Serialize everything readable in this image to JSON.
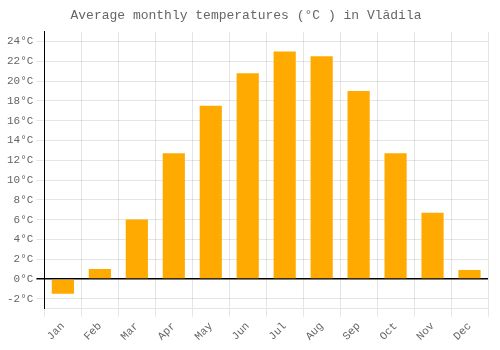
{
  "chart_data": {
    "type": "bar",
    "title": "Average monthly temperatures (°C ) in Vlădila",
    "categories": [
      "Jan",
      "Feb",
      "Mar",
      "Apr",
      "May",
      "Jun",
      "Jul",
      "Aug",
      "Sep",
      "Oct",
      "Nov",
      "Dec"
    ],
    "values": [
      -1.5,
      1.0,
      6.0,
      12.7,
      17.5,
      20.8,
      23.0,
      22.5,
      19.0,
      12.7,
      6.7,
      0.9
    ],
    "color": "#FFAA00",
    "ylim": [
      -3,
      25
    ],
    "yticks": [
      {
        "value": -2,
        "label": "-2°C"
      },
      {
        "value": 0,
        "label": "0°C"
      },
      {
        "value": 2,
        "label": "2°C"
      },
      {
        "value": 4,
        "label": "4°C"
      },
      {
        "value": 6,
        "label": "6°C"
      },
      {
        "value": 8,
        "label": "8°C"
      },
      {
        "value": 10,
        "label": "10°C"
      },
      {
        "value": 12,
        "label": "12°C"
      },
      {
        "value": 14,
        "label": "14°C"
      },
      {
        "value": 16,
        "label": "16°C"
      },
      {
        "value": 18,
        "label": "18°C"
      },
      {
        "value": 20,
        "label": "20°C"
      },
      {
        "value": 22,
        "label": "22°C"
      },
      {
        "value": 24,
        "label": "24°C"
      }
    ],
    "grid": true
  }
}
